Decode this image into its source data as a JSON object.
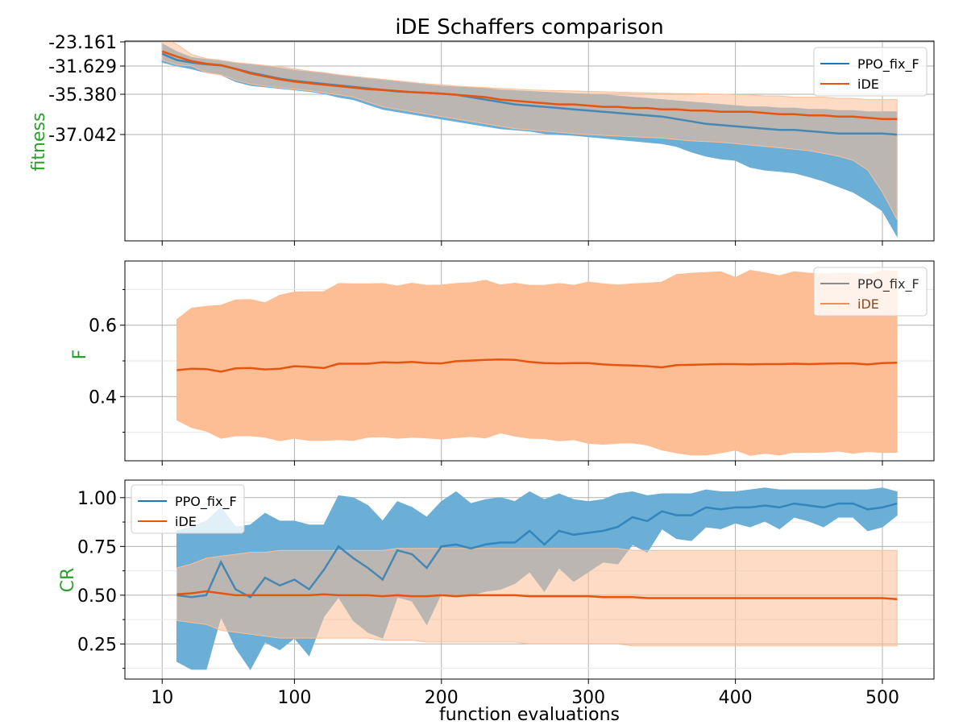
{
  "title": "iDE Schaffers comparison",
  "xlabel": "function evaluations",
  "xticks": [
    "10",
    "100",
    "200",
    "300",
    "400",
    "500"
  ],
  "colors": {
    "ppo": "#1f77b4",
    "ppo_band": "#6baed6",
    "ide": "#e6550d",
    "ide_band": "#fdbe95",
    "overlap": "#b09886",
    "ylabel": "#2ca02c",
    "grid": "#b0b0b0"
  },
  "legends": [
    {
      "entries": [
        "PPO_fix_F",
        "iDE"
      ]
    },
    {
      "entries": [
        "PPO_fix_F",
        "iDE"
      ]
    },
    {
      "entries": [
        "PPO_fix_F",
        "iDE"
      ]
    }
  ],
  "chart_data": [
    {
      "type": "line",
      "panel": "fitness",
      "ylabel": "fitness",
      "yticks": [
        "-23.161",
        "-31.629",
        "-35.380",
        "-37.042"
      ],
      "yscale": "symlog",
      "legend": "top-right",
      "grid": true,
      "x": [
        10,
        20,
        30,
        40,
        50,
        60,
        70,
        80,
        90,
        100,
        110,
        120,
        130,
        140,
        150,
        160,
        170,
        180,
        190,
        200,
        210,
        220,
        230,
        240,
        250,
        260,
        270,
        280,
        290,
        300,
        310,
        320,
        330,
        340,
        350,
        360,
        370,
        380,
        390,
        400,
        410,
        420,
        430,
        440,
        450,
        460,
        470,
        480,
        490,
        500,
        510
      ],
      "series": [
        {
          "name": "PPO_fix_F",
          "mean": [
            -27.3,
            -29.5,
            -30.4,
            -31.0,
            -31.4,
            -32.0,
            -32.5,
            -32.9,
            -33.3,
            -33.6,
            -33.8,
            -34.0,
            -34.2,
            -34.4,
            -34.6,
            -34.8,
            -35.0,
            -35.1,
            -35.2,
            -35.3,
            -35.4,
            -35.5,
            -35.6,
            -35.7,
            -35.8,
            -35.85,
            -35.9,
            -35.95,
            -36.0,
            -36.05,
            -36.1,
            -36.15,
            -36.2,
            -36.25,
            -36.3,
            -36.4,
            -36.5,
            -36.6,
            -36.65,
            -36.7,
            -36.75,
            -36.8,
            -36.85,
            -36.85,
            -36.9,
            -36.95,
            -37.0,
            -37.0,
            -37.0,
            -37.0,
            -37.05
          ],
          "upper": [
            -23.8,
            -26.6,
            -28.6,
            -29.3,
            -29.9,
            -30.6,
            -31.1,
            -31.5,
            -31.9,
            -32.2,
            -32.4,
            -32.6,
            -32.8,
            -33.1,
            -33.3,
            -33.5,
            -33.7,
            -33.9,
            -34.1,
            -34.3,
            -34.4,
            -34.5,
            -34.6,
            -34.8,
            -34.9,
            -35.0,
            -35.1,
            -35.2,
            -35.3,
            -35.35,
            -35.4,
            -35.45,
            -35.5,
            -35.55,
            -35.6,
            -35.65,
            -35.7,
            -35.75,
            -35.8,
            -35.85,
            -35.9,
            -35.9,
            -35.95,
            -35.95,
            -36.0,
            -36.0,
            -36.05,
            -36.05,
            -36.1,
            -36.1,
            -36.1
          ],
          "lower": [
            -30.3,
            -31.6,
            -32.0,
            -32.5,
            -32.8,
            -33.7,
            -34.2,
            -34.4,
            -34.6,
            -34.8,
            -35.0,
            -35.3,
            -35.5,
            -35.6,
            -35.8,
            -36.0,
            -36.1,
            -36.2,
            -36.3,
            -36.4,
            -36.5,
            -36.6,
            -36.7,
            -36.8,
            -36.85,
            -36.9,
            -37.0,
            -37.05,
            -37.1,
            -37.2,
            -37.3,
            -37.4,
            -37.5,
            -37.6,
            -37.7,
            -37.9,
            -38.3,
            -38.6,
            -38.8,
            -38.9,
            -39.4,
            -39.6,
            -39.7,
            -39.8,
            -40.1,
            -40.5,
            -41.0,
            -41.5,
            -42.3,
            -43.2,
            -45.5
          ]
        },
        {
          "name": "iDE",
          "mean": [
            -26.5,
            -28.3,
            -29.9,
            -30.8,
            -31.3,
            -32.0,
            -32.6,
            -33.0,
            -33.4,
            -33.7,
            -33.9,
            -34.1,
            -34.3,
            -34.5,
            -34.7,
            -34.8,
            -34.95,
            -35.1,
            -35.2,
            -35.3,
            -35.4,
            -35.45,
            -35.5,
            -35.6,
            -35.65,
            -35.7,
            -35.75,
            -35.8,
            -35.8,
            -35.85,
            -35.9,
            -35.9,
            -35.95,
            -35.95,
            -36.0,
            -36.0,
            -36.05,
            -36.05,
            -36.1,
            -36.1,
            -36.1,
            -36.15,
            -36.2,
            -36.2,
            -36.25,
            -36.25,
            -36.3,
            -36.3,
            -36.35,
            -36.4,
            -36.4
          ],
          "upper": [
            -20.5,
            -24.0,
            -27.6,
            -29.0,
            -29.6,
            -30.4,
            -30.9,
            -31.4,
            -31.7,
            -32.0,
            -32.3,
            -32.5,
            -32.8,
            -33.0,
            -33.2,
            -33.4,
            -33.6,
            -33.8,
            -34.0,
            -34.1,
            -34.3,
            -34.4,
            -34.5,
            -34.6,
            -34.7,
            -34.8,
            -34.85,
            -34.9,
            -34.95,
            -35.0,
            -35.05,
            -35.1,
            -35.15,
            -35.2,
            -35.25,
            -35.3,
            -35.3,
            -35.35,
            -35.35,
            -35.4,
            -35.4,
            -35.45,
            -35.45,
            -35.5,
            -35.5,
            -35.5,
            -35.55,
            -35.55,
            -35.6,
            -35.6,
            -35.6
          ],
          "lower": [
            -29.5,
            -31.2,
            -31.6,
            -32.5,
            -32.8,
            -33.5,
            -34.0,
            -34.3,
            -34.5,
            -34.7,
            -34.9,
            -35.2,
            -35.4,
            -35.5,
            -35.7,
            -35.9,
            -36.0,
            -36.1,
            -36.2,
            -36.3,
            -36.4,
            -36.5,
            -36.6,
            -36.7,
            -36.8,
            -36.85,
            -36.9,
            -36.95,
            -37.0,
            -37.05,
            -37.1,
            -37.15,
            -37.2,
            -37.25,
            -37.3,
            -37.4,
            -37.5,
            -37.55,
            -37.6,
            -37.7,
            -37.8,
            -37.9,
            -38.0,
            -38.1,
            -38.2,
            -38.4,
            -38.6,
            -38.9,
            -39.6,
            -41.5,
            -44.0
          ]
        }
      ]
    },
    {
      "type": "line",
      "panel": "F",
      "ylabel": "F",
      "yticks": [
        "0.4",
        "0.6"
      ],
      "ylim": [
        0.22,
        0.78
      ],
      "legend": "top-right",
      "grid": true,
      "x": [
        20,
        30,
        40,
        50,
        60,
        70,
        80,
        90,
        100,
        110,
        120,
        130,
        140,
        150,
        160,
        170,
        180,
        190,
        200,
        210,
        220,
        230,
        240,
        250,
        260,
        270,
        280,
        290,
        300,
        310,
        320,
        330,
        340,
        350,
        360,
        370,
        380,
        390,
        400,
        410,
        420,
        430,
        440,
        450,
        460,
        470,
        480,
        490,
        500,
        510
      ],
      "series": [
        {
          "name": "iDE",
          "mean": [
            0.474,
            0.478,
            0.477,
            0.47,
            0.479,
            0.48,
            0.476,
            0.478,
            0.485,
            0.483,
            0.48,
            0.492,
            0.492,
            0.492,
            0.496,
            0.495,
            0.497,
            0.494,
            0.493,
            0.499,
            0.501,
            0.503,
            0.504,
            0.503,
            0.497,
            0.494,
            0.493,
            0.494,
            0.494,
            0.49,
            0.488,
            0.487,
            0.485,
            0.482,
            0.488,
            0.489,
            0.49,
            0.491,
            0.491,
            0.49,
            0.491,
            0.491,
            0.492,
            0.491,
            0.492,
            0.493,
            0.493,
            0.49,
            0.494,
            0.495
          ],
          "upper": [
            0.616,
            0.648,
            0.653,
            0.656,
            0.671,
            0.672,
            0.663,
            0.684,
            0.693,
            0.694,
            0.694,
            0.717,
            0.716,
            0.716,
            0.717,
            0.71,
            0.718,
            0.712,
            0.713,
            0.717,
            0.719,
            0.726,
            0.713,
            0.718,
            0.712,
            0.712,
            0.717,
            0.712,
            0.721,
            0.716,
            0.713,
            0.716,
            0.718,
            0.721,
            0.742,
            0.746,
            0.748,
            0.75,
            0.734,
            0.754,
            0.747,
            0.739,
            0.75,
            0.746,
            0.744,
            0.746,
            0.746,
            0.742,
            0.753,
            0.751
          ],
          "lower": [
            0.334,
            0.313,
            0.303,
            0.283,
            0.29,
            0.29,
            0.286,
            0.276,
            0.283,
            0.277,
            0.277,
            0.279,
            0.277,
            0.286,
            0.287,
            0.283,
            0.286,
            0.284,
            0.281,
            0.285,
            0.288,
            0.284,
            0.298,
            0.289,
            0.283,
            0.282,
            0.276,
            0.279,
            0.269,
            0.266,
            0.269,
            0.27,
            0.264,
            0.25,
            0.242,
            0.236,
            0.236,
            0.242,
            0.25,
            0.235,
            0.241,
            0.236,
            0.244,
            0.243,
            0.244,
            0.247,
            0.241,
            0.246,
            0.243,
            0.244
          ]
        }
      ]
    },
    {
      "type": "line",
      "panel": "CR",
      "ylabel": "CR",
      "yticks": [
        "0.25",
        "0.50",
        "0.75",
        "1.00"
      ],
      "ylim": [
        0.07,
        1.09
      ],
      "legend": "top-left",
      "grid": true,
      "x": [
        20,
        30,
        40,
        50,
        60,
        70,
        80,
        90,
        100,
        110,
        120,
        130,
        140,
        150,
        160,
        170,
        180,
        190,
        200,
        210,
        220,
        230,
        240,
        250,
        260,
        270,
        280,
        290,
        300,
        310,
        320,
        330,
        340,
        350,
        360,
        370,
        380,
        390,
        400,
        410,
        420,
        430,
        440,
        450,
        460,
        470,
        480,
        490,
        500,
        510
      ],
      "series": [
        {
          "name": "PPO_fix_F",
          "mean": [
            0.5,
            0.49,
            0.5,
            0.67,
            0.53,
            0.49,
            0.59,
            0.55,
            0.58,
            0.53,
            0.63,
            0.75,
            0.69,
            0.64,
            0.58,
            0.73,
            0.71,
            0.64,
            0.75,
            0.76,
            0.74,
            0.76,
            0.77,
            0.77,
            0.83,
            0.76,
            0.83,
            0.81,
            0.82,
            0.83,
            0.85,
            0.9,
            0.88,
            0.93,
            0.91,
            0.91,
            0.95,
            0.94,
            0.95,
            0.95,
            0.96,
            0.95,
            0.97,
            0.96,
            0.95,
            0.97,
            0.97,
            0.94,
            0.95,
            0.97
          ],
          "upper": [
            0.83,
            0.85,
            0.88,
            0.95,
            0.85,
            0.86,
            0.92,
            0.88,
            0.88,
            0.86,
            0.86,
            1.01,
            1.0,
            0.96,
            0.88,
            0.98,
            0.95,
            0.9,
            0.98,
            1.03,
            0.97,
            0.99,
            1.0,
            0.98,
            1.03,
            0.99,
            1.02,
            0.99,
            0.98,
            0.99,
            1.02,
            1.03,
            1.01,
            1.02,
            1.02,
            1.02,
            1.04,
            1.03,
            1.03,
            1.04,
            1.05,
            1.04,
            1.04,
            1.04,
            1.04,
            1.04,
            1.04,
            1.04,
            1.05,
            1.03
          ],
          "lower": [
            0.16,
            0.12,
            0.12,
            0.39,
            0.23,
            0.12,
            0.26,
            0.22,
            0.28,
            0.19,
            0.39,
            0.49,
            0.37,
            0.31,
            0.28,
            0.49,
            0.47,
            0.35,
            0.51,
            0.49,
            0.5,
            0.52,
            0.53,
            0.56,
            0.62,
            0.52,
            0.64,
            0.57,
            0.62,
            0.67,
            0.66,
            0.76,
            0.72,
            0.84,
            0.79,
            0.78,
            0.85,
            0.84,
            0.87,
            0.85,
            0.88,
            0.84,
            0.9,
            0.88,
            0.85,
            0.9,
            0.9,
            0.83,
            0.85,
            0.91
          ]
        },
        {
          "name": "iDE",
          "mean": [
            0.505,
            0.51,
            0.52,
            0.51,
            0.5,
            0.5,
            0.5,
            0.5,
            0.5,
            0.5,
            0.505,
            0.5,
            0.5,
            0.5,
            0.495,
            0.5,
            0.495,
            0.495,
            0.5,
            0.495,
            0.5,
            0.5,
            0.5,
            0.5,
            0.495,
            0.495,
            0.495,
            0.495,
            0.495,
            0.49,
            0.49,
            0.49,
            0.485,
            0.485,
            0.485,
            0.485,
            0.485,
            0.485,
            0.485,
            0.485,
            0.485,
            0.485,
            0.485,
            0.485,
            0.485,
            0.485,
            0.485,
            0.485,
            0.485,
            0.48
          ],
          "upper": [
            0.64,
            0.66,
            0.69,
            0.7,
            0.71,
            0.72,
            0.72,
            0.73,
            0.73,
            0.73,
            0.73,
            0.73,
            0.73,
            0.73,
            0.73,
            0.74,
            0.74,
            0.74,
            0.74,
            0.74,
            0.74,
            0.74,
            0.74,
            0.74,
            0.74,
            0.74,
            0.74,
            0.74,
            0.74,
            0.74,
            0.74,
            0.73,
            0.73,
            0.73,
            0.73,
            0.73,
            0.73,
            0.73,
            0.73,
            0.73,
            0.73,
            0.73,
            0.73,
            0.73,
            0.73,
            0.73,
            0.73,
            0.73,
            0.73,
            0.73
          ],
          "lower": [
            0.37,
            0.36,
            0.35,
            0.32,
            0.31,
            0.3,
            0.29,
            0.28,
            0.28,
            0.28,
            0.28,
            0.28,
            0.28,
            0.28,
            0.27,
            0.27,
            0.27,
            0.26,
            0.26,
            0.26,
            0.26,
            0.26,
            0.26,
            0.26,
            0.25,
            0.25,
            0.25,
            0.25,
            0.25,
            0.25,
            0.25,
            0.24,
            0.24,
            0.24,
            0.24,
            0.24,
            0.24,
            0.24,
            0.24,
            0.24,
            0.24,
            0.24,
            0.24,
            0.24,
            0.24,
            0.24,
            0.24,
            0.24,
            0.24,
            0.24
          ]
        }
      ]
    }
  ]
}
